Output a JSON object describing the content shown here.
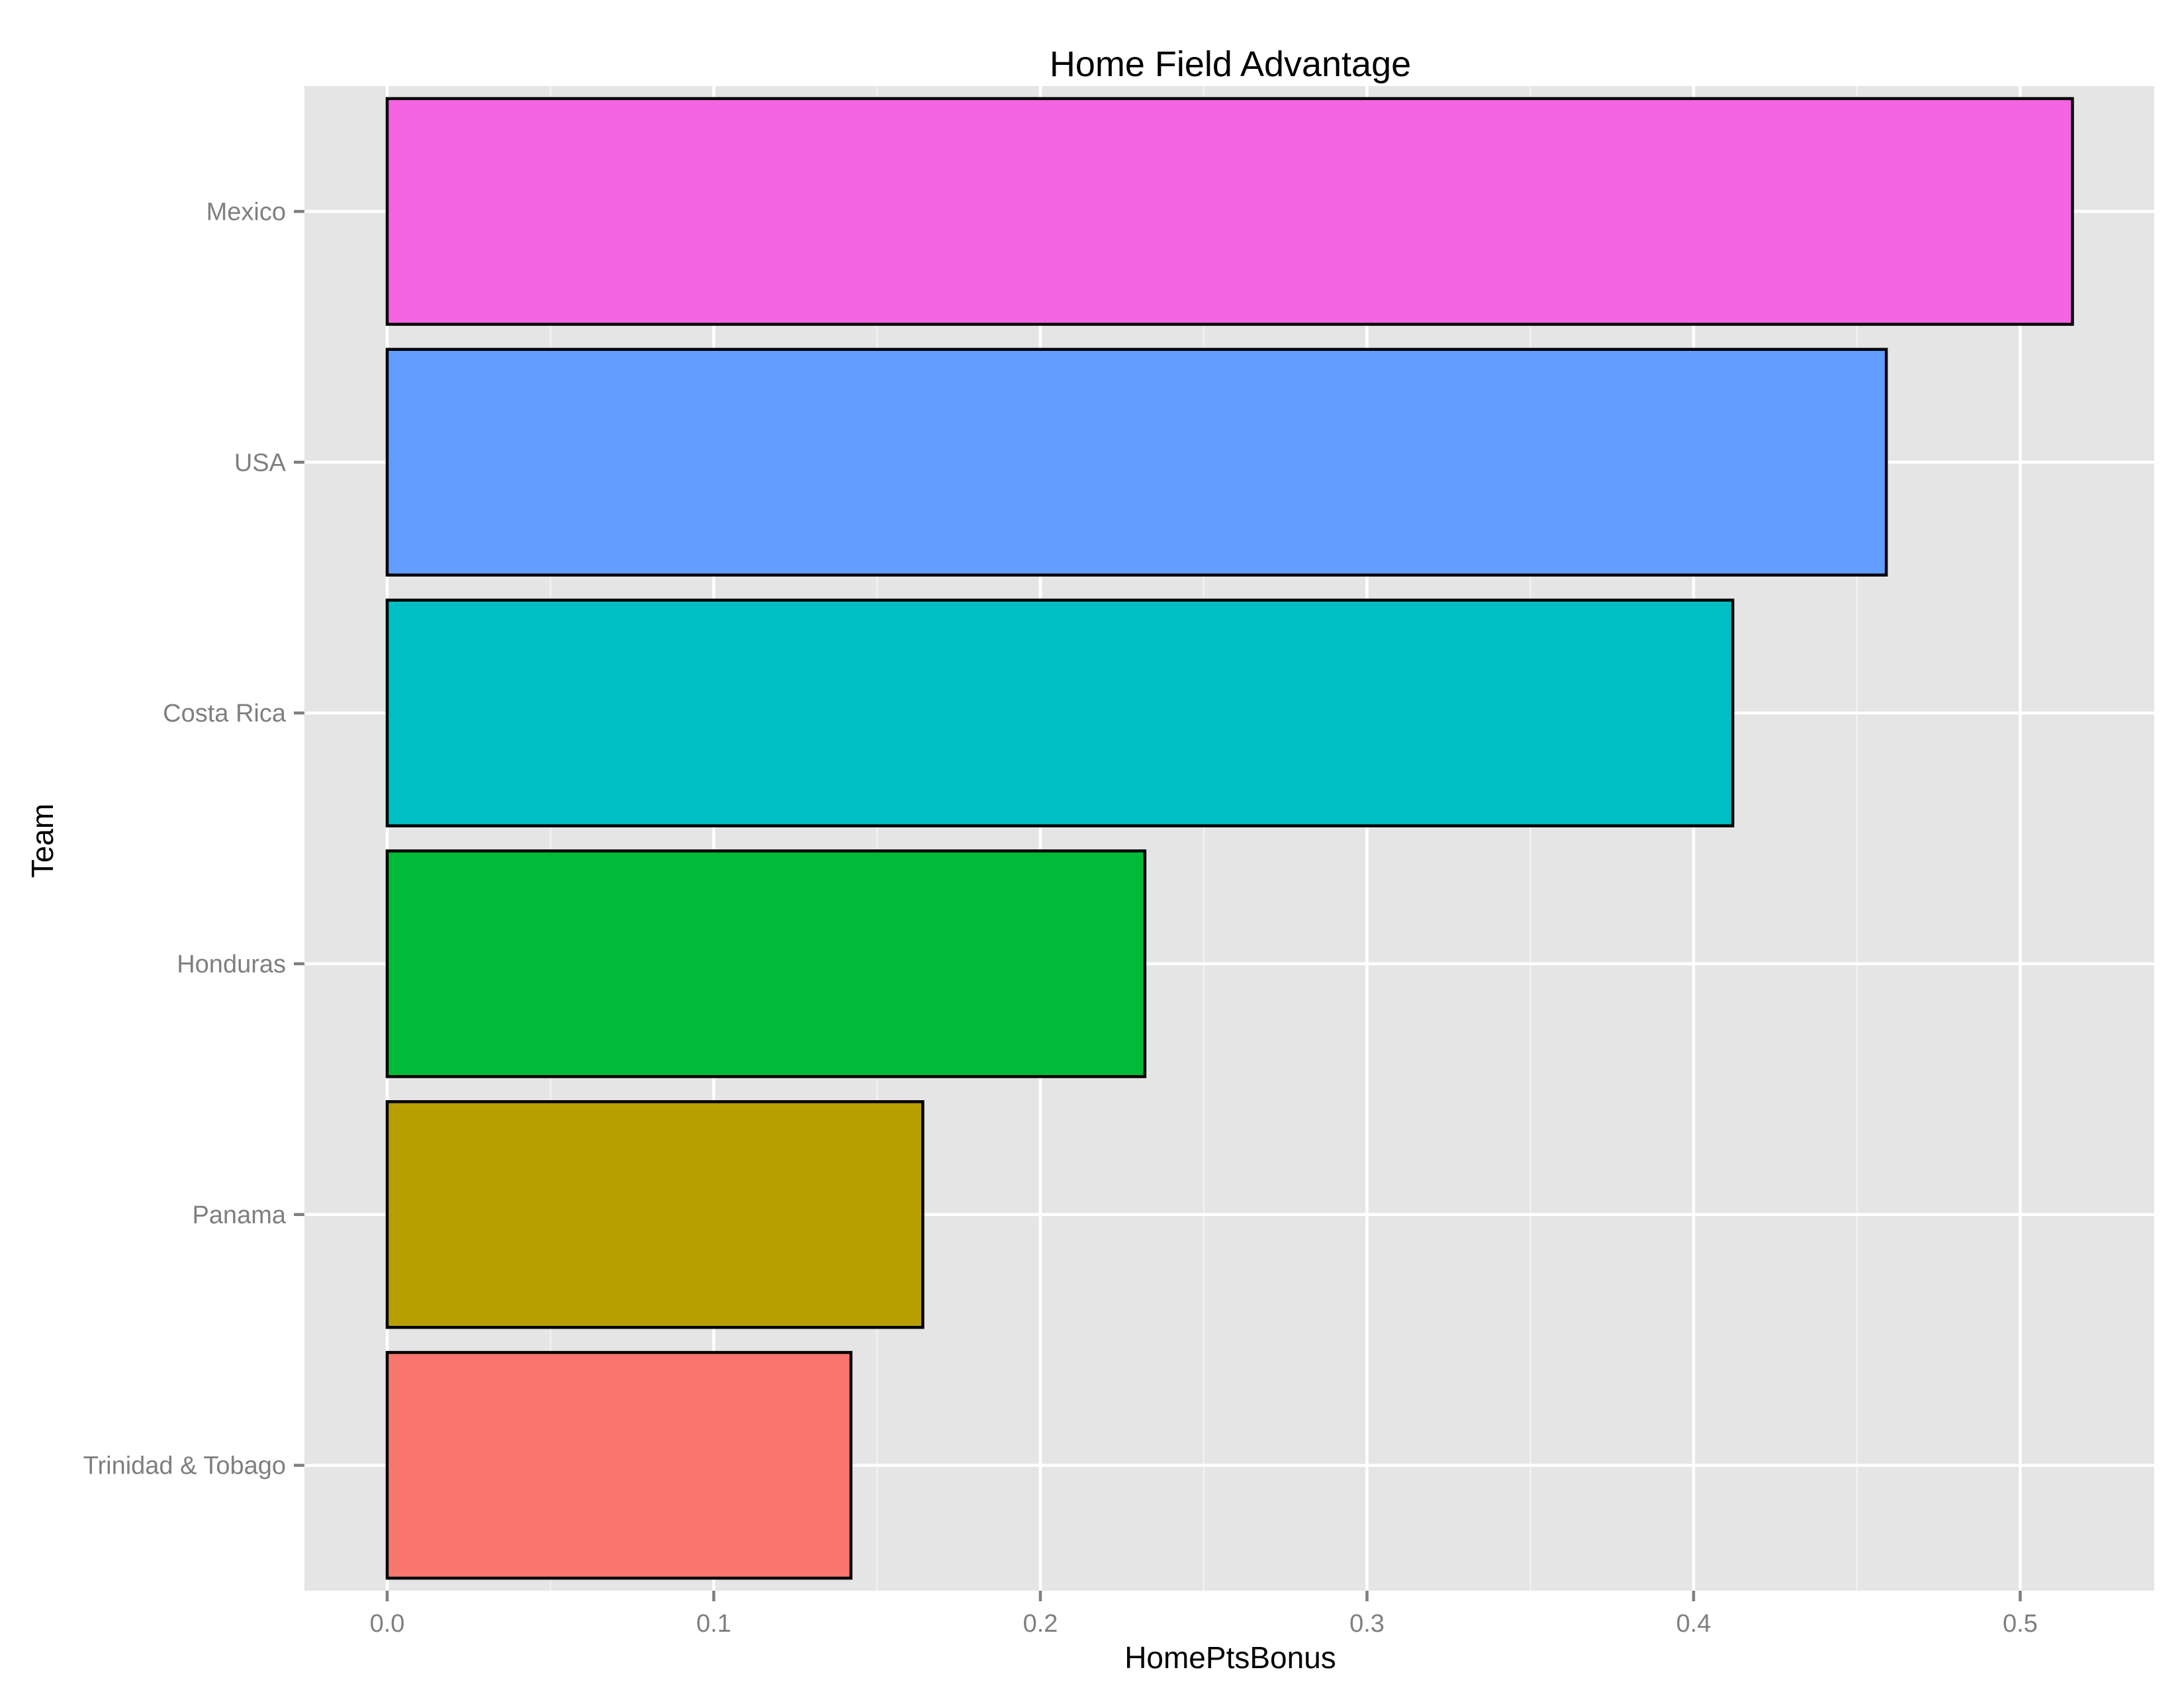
{
  "chart_data": {
    "type": "bar",
    "orientation": "horizontal",
    "title": "Home Field Advantage",
    "xlabel": "HomePtsBonus",
    "ylabel": "Team",
    "categories": [
      "Mexico",
      "USA",
      "Costa Rica",
      "Honduras",
      "Panama",
      "Trinidad & Tobago"
    ],
    "values": [
      0.516,
      0.459,
      0.412,
      0.232,
      0.164,
      0.142
    ],
    "colors": [
      "#F564E3",
      "#619CFF",
      "#00BFC4",
      "#00BA38",
      "#B79F00",
      "#F8766D"
    ],
    "xlim": [
      0,
      0.516
    ],
    "xticks": [
      "0.0",
      "0.1",
      "0.2",
      "0.3",
      "0.4",
      "0.5"
    ],
    "grid": true,
    "panel_background": "#E5E5E5",
    "legend": "none"
  }
}
